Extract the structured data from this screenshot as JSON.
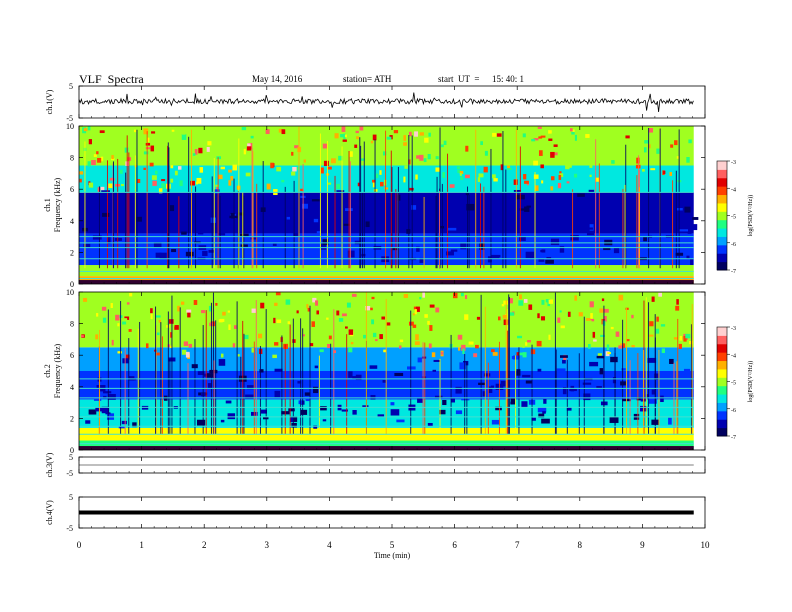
{
  "header": {
    "title": "VLF  Spectra",
    "date": "May 14, 2016",
    "station": "station= ATH",
    "start_label": "start  UT  =",
    "start_time": "15: 40: 1"
  },
  "colorbar_colors": [
    "#000060",
    "#0000b0",
    "#0033ff",
    "#00a0ff",
    "#00e8e0",
    "#20ff80",
    "#a0ff20",
    "#ffff00",
    "#ffb000",
    "#ff4000",
    "#e00000",
    "#ff6060",
    "#ffd0d0"
  ],
  "chart_data": [
    {
      "type": "line",
      "ylabel": "ch.1(V)",
      "ylim": [
        -5,
        5
      ],
      "yticks": [
        "5",
        "-5"
      ],
      "xlim": [
        0,
        10
      ],
      "series": [
        {
          "mean": 0.2,
          "noise": "spiky broadband"
        }
      ]
    },
    {
      "type": "heatmap",
      "ylabel_top": "ch.1",
      "ylabel": "Frequency  (kHz)",
      "ylim": [
        0,
        10
      ],
      "yticks": [
        "0",
        "2",
        "4",
        "6",
        "8",
        "10"
      ],
      "xlim": [
        0,
        10
      ],
      "colorbar": {
        "label": "log(PSD(V²/Hz))",
        "range": [
          -7,
          -3
        ],
        "ticks": [
          "-3",
          "-4",
          "-5",
          "-6",
          "-7"
        ]
      },
      "bands": [
        {
          "from": 0,
          "to": 0.5,
          "level": -4.5
        },
        {
          "from": 0.5,
          "to": 1.2,
          "level": -5.0
        },
        {
          "from": 1.2,
          "to": 3.2,
          "level": -6.3
        },
        {
          "from": 3.2,
          "to": 5.8,
          "level": -6.7
        },
        {
          "from": 5.8,
          "to": 7.5,
          "level": -5.8
        },
        {
          "from": 7.5,
          "to": 10,
          "level": -5.0
        }
      ],
      "tones_khz": [
        0.35,
        0.8,
        1.6,
        2.3,
        2.6,
        3.0,
        5.8
      ]
    },
    {
      "type": "heatmap",
      "ylabel_top": "ch.2",
      "ylabel": "Frequency  (kHz)",
      "ylim": [
        0,
        10
      ],
      "yticks": [
        "0",
        "2",
        "4",
        "6",
        "8",
        "10"
      ],
      "xlim": [
        0,
        10
      ],
      "colorbar": {
        "label": "log(PSD(V²/Hz))",
        "range": [
          -7,
          -3
        ],
        "ticks": [
          "-3",
          "-4",
          "-5",
          "-6",
          "-7"
        ]
      },
      "bands": [
        {
          "from": 0,
          "to": 0.6,
          "level": -5.2
        },
        {
          "from": 0.6,
          "to": 1.4,
          "level": -4.8
        },
        {
          "from": 1.4,
          "to": 3.2,
          "level": -5.6
        },
        {
          "from": 3.2,
          "to": 5.0,
          "level": -6.4
        },
        {
          "from": 5.0,
          "to": 6.5,
          "level": -6.0
        },
        {
          "from": 6.5,
          "to": 10,
          "level": -5.0
        }
      ],
      "tones_khz": [
        0.4,
        1.0,
        1.5,
        2.1,
        2.7,
        3.3,
        3.9,
        4.5
      ]
    },
    {
      "type": "line",
      "ylabel": "ch.3(V)",
      "ylim": [
        -5,
        5
      ],
      "yticks": [
        "5",
        "-5"
      ],
      "xlim": [
        0,
        10
      ],
      "series": [
        {
          "mean": 0,
          "noise": "flat"
        }
      ]
    },
    {
      "type": "line",
      "ylabel": "ch.4(V)",
      "ylim": [
        -5,
        5
      ],
      "yticks": [
        "5",
        "-5"
      ],
      "xlim": [
        0,
        10
      ],
      "series": [
        {
          "mean": 0,
          "noise": "thick flat"
        }
      ]
    }
  ],
  "x_axis": {
    "label": "Time  (min)",
    "ticks": [
      "0",
      "1",
      "2",
      "3",
      "4",
      "5",
      "6",
      "7",
      "8",
      "9",
      "10"
    ],
    "data_end": 9.82
  }
}
